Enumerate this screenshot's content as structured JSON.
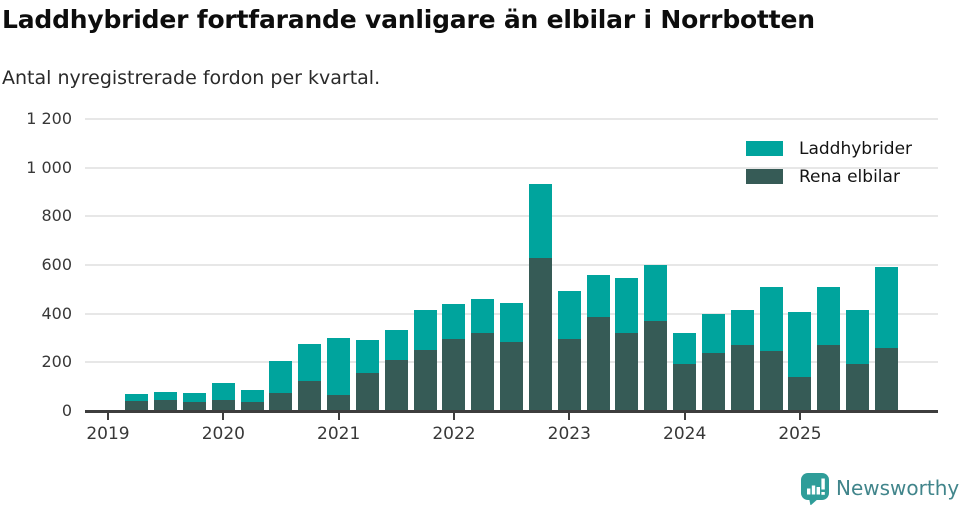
{
  "header": {
    "title": "Laddhybrider fortfarande vanligare än elbilar i Norrbotten",
    "subtitle": "Antal nyregistrerade fordon per kvartal."
  },
  "legend": {
    "items": [
      {
        "label": "Laddhybrider",
        "color": "#00a49d"
      },
      {
        "label": "Rena elbilar",
        "color": "#365b56"
      }
    ]
  },
  "footer": {
    "brand_name": "Newsworthy",
    "brand_text_color": "#41858b",
    "icon_color": "#2f9d99"
  },
  "colors": {
    "laddhybrider": "#00a49d",
    "rena_elbilar": "#365b56",
    "gridline": "#e7e7e7",
    "axis": "#3d3d3d",
    "background": "#ffffff"
  },
  "chart_data": {
    "type": "bar",
    "stacked": true,
    "title": "Laddhybrider fortfarande vanligare än elbilar i Norrbotten",
    "subtitle": "Antal nyregistrerade fordon per kvartal.",
    "xlabel": "",
    "ylabel": "",
    "ylim": [
      0,
      1200
    ],
    "grid": "horizontal",
    "legend_position": "top-right",
    "x": [
      "2019 Q2",
      "2019 Q3",
      "2019 Q4",
      "2020 Q1",
      "2020 Q2",
      "2020 Q3",
      "2020 Q4",
      "2021 Q1",
      "2021 Q2",
      "2021 Q3",
      "2021 Q4",
      "2022 Q1",
      "2022 Q2",
      "2022 Q3",
      "2022 Q4",
      "2023 Q1",
      "2023 Q2",
      "2023 Q3",
      "2023 Q4",
      "2024 Q1",
      "2024 Q2",
      "2024 Q3",
      "2024 Q4",
      "2025 Q1",
      "2025 Q2",
      "2025 Q3",
      "2025 Q4"
    ],
    "series": [
      {
        "name": "Rena elbilar",
        "color": "#365b56",
        "stack_order": "bottom",
        "values": [
          40,
          45,
          35,
          45,
          35,
          75,
          125,
          65,
          155,
          210,
          250,
          295,
          320,
          285,
          630,
          295,
          385,
          320,
          370,
          195,
          240,
          270,
          245,
          140,
          270,
          195,
          260
        ]
      },
      {
        "name": "Laddhybrider",
        "color": "#00a49d",
        "stack_order": "top",
        "values": [
          30,
          35,
          40,
          70,
          50,
          130,
          150,
          235,
          135,
          125,
          165,
          145,
          140,
          160,
          305,
          200,
          175,
          225,
          230,
          125,
          160,
          145,
          265,
          265,
          240,
          220,
          330
        ]
      }
    ],
    "totals": [
      70,
      80,
      75,
      115,
      85,
      205,
      275,
      300,
      290,
      335,
      415,
      440,
      460,
      445,
      935,
      495,
      560,
      545,
      600,
      320,
      400,
      415,
      510,
      405,
      510,
      415,
      590
    ],
    "x_tick_labels": [
      "2019",
      "2020",
      "2021",
      "2022",
      "2023",
      "2024",
      "2025"
    ],
    "y_ticks": [
      0,
      200,
      400,
      600,
      800,
      1000,
      1200
    ],
    "y_tick_labels": [
      "0",
      "200",
      "400",
      "600",
      "800",
      "1 000",
      "1 200"
    ]
  }
}
